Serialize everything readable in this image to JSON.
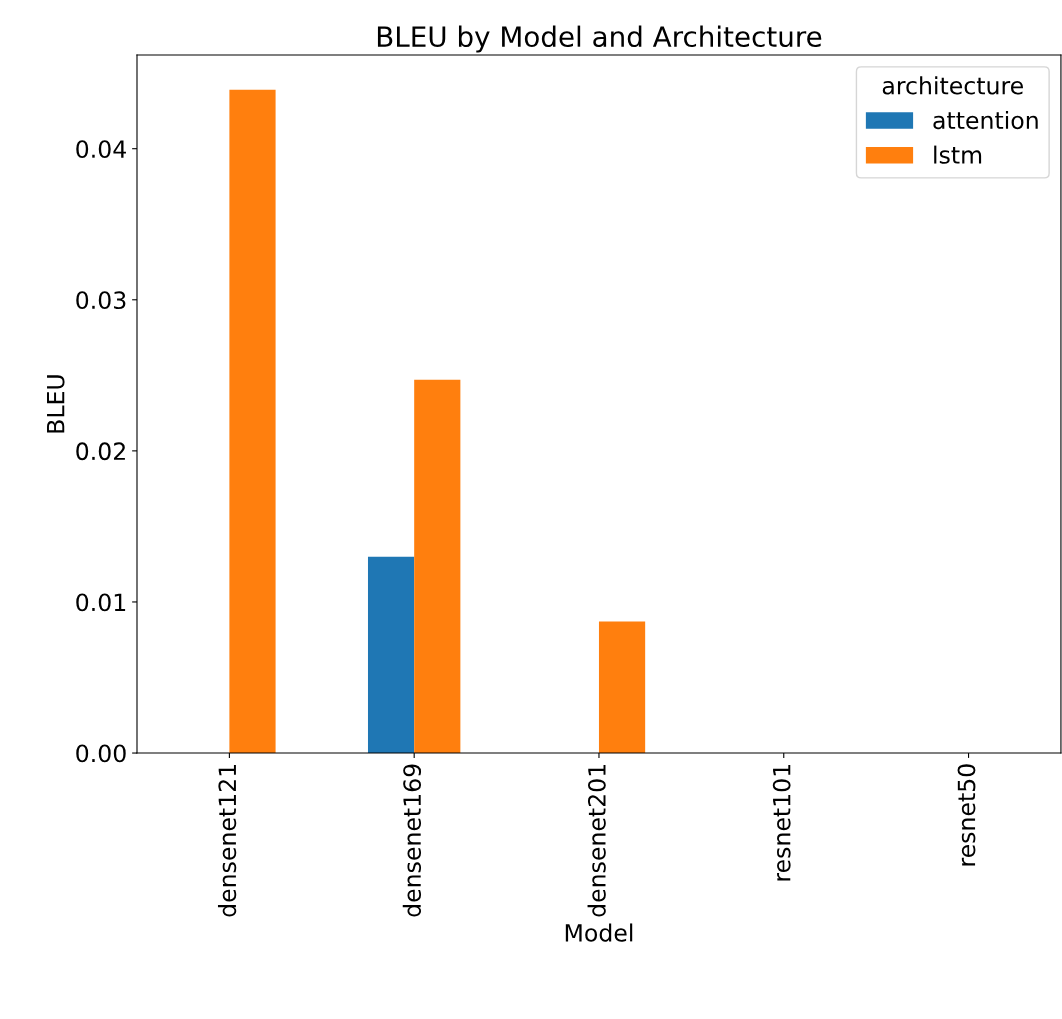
{
  "chart_data": {
    "type": "bar",
    "title": "BLEU by Model and Architecture",
    "xlabel": "Model",
    "ylabel": "BLEU",
    "legend_title": "architecture",
    "categories": [
      "densenet121",
      "densenet169",
      "densenet201",
      "resnet101",
      "resnet50"
    ],
    "series": [
      {
        "name": "attention",
        "color": "#1f77b4",
        "values": [
          null,
          0.013,
          null,
          null,
          null
        ]
      },
      {
        "name": "lstm",
        "color": "#ff7f0e",
        "values": [
          0.0439,
          0.0247,
          0.0087,
          null,
          null
        ]
      }
    ],
    "ylim": [
      0,
      0.0462
    ],
    "yticks": [
      {
        "value": 0,
        "label": "0.00"
      },
      {
        "value": 0.01,
        "label": "0.01"
      },
      {
        "value": 0.02,
        "label": "0.02"
      },
      {
        "value": 0.03,
        "label": "0.03"
      },
      {
        "value": 0.04,
        "label": "0.04"
      }
    ],
    "legend": "top right",
    "grid": false
  }
}
